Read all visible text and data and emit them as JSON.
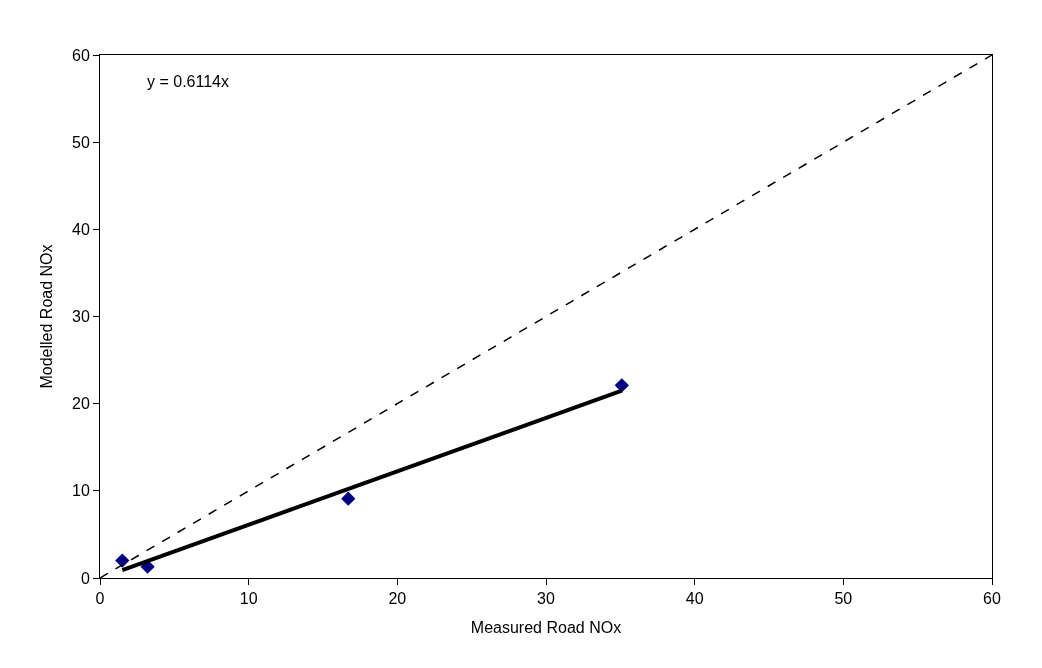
{
  "chart_data": {
    "type": "scatter",
    "xlabel": "Measured Road NOx",
    "ylabel": "Modelled Road NOx",
    "xlim": [
      0,
      60
    ],
    "ylim": [
      0,
      60
    ],
    "xticks": [
      0,
      10,
      20,
      30,
      40,
      50,
      60
    ],
    "yticks": [
      0,
      10,
      20,
      30,
      40,
      50,
      60
    ],
    "marker": "diamond",
    "series": [
      {
        "color": "#000080",
        "x": [
          1.5,
          3.2,
          16.7,
          35.1
        ],
        "values": [
          2.0,
          1.3,
          9.1,
          22.1
        ]
      },
      {
        "type": "line",
        "color": "#000000",
        "line_style": "solid",
        "marker": "none",
        "x": [
          1.5,
          35.1
        ],
        "values": [
          0.9,
          21.5
        ]
      },
      {
        "type": "line",
        "color": "#000000",
        "line_style": "dashed",
        "marker": "none",
        "x": [
          0,
          60
        ],
        "values": [
          0,
          60
        ]
      }
    ],
    "annotations": [
      "y = 0.6114x"
    ]
  }
}
